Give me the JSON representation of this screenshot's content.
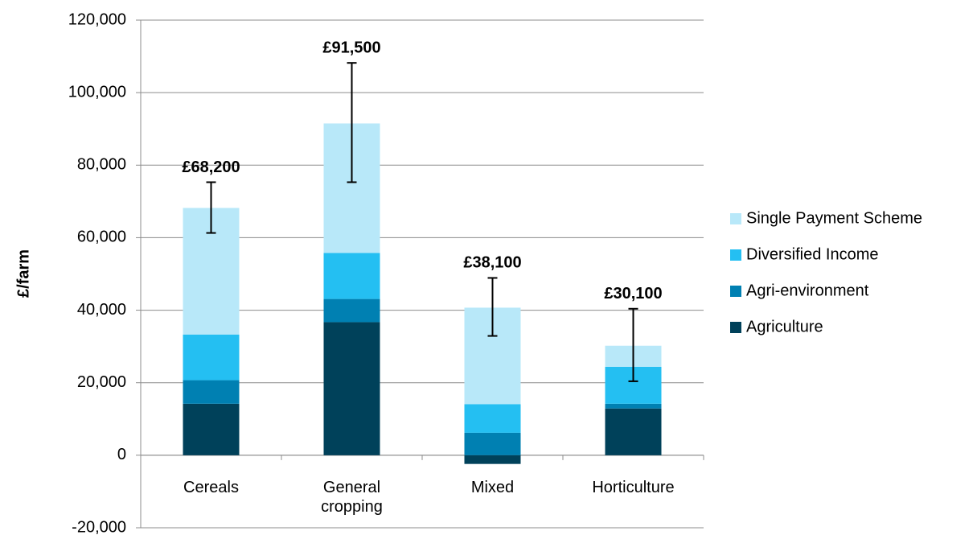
{
  "chart_data": {
    "type": "stacked_bar",
    "y_label": "£/farm",
    "categories": [
      "Cereals",
      "General cropping",
      "Mixed",
      "Horticulture"
    ],
    "series": [
      {
        "name": "Agriculture",
        "color": "#00415a",
        "values": [
          14200,
          36700,
          -2400,
          12900
        ]
      },
      {
        "name": "Agri-environment",
        "color": "#0080b2",
        "values": [
          6500,
          6400,
          6200,
          1300
        ]
      },
      {
        "name": "Diversified Income",
        "color": "#24bff2",
        "values": [
          12600,
          12700,
          7900,
          10200
        ]
      },
      {
        "name": "Single Payment Scheme",
        "color": "#b8e8f9",
        "values": [
          34900,
          35700,
          26600,
          5800
        ]
      }
    ],
    "totals": [
      68200,
      91500,
      38100,
      30100
    ],
    "total_labels": [
      "£68,200",
      "£91,500",
      "£38,100",
      "£30,100"
    ],
    "error_low": [
      61300,
      75300,
      32900,
      20400
    ],
    "error_high": [
      75300,
      108200,
      48900,
      40400
    ],
    "ylim": [
      -20000,
      120000
    ],
    "yticks": [
      {
        "value": -20000,
        "label": "-20,000"
      },
      0,
      {
        "value": 20000,
        "label": "20,000"
      },
      {
        "value": 40000,
        "label": "40,000"
      },
      {
        "value": 60000,
        "label": "60,000"
      },
      {
        "value": 80000,
        "label": "80,000"
      },
      {
        "value": 100000,
        "label": "100,000"
      },
      {
        "value": 120000,
        "label": "120,000"
      }
    ],
    "grid": true,
    "legend": "right"
  }
}
